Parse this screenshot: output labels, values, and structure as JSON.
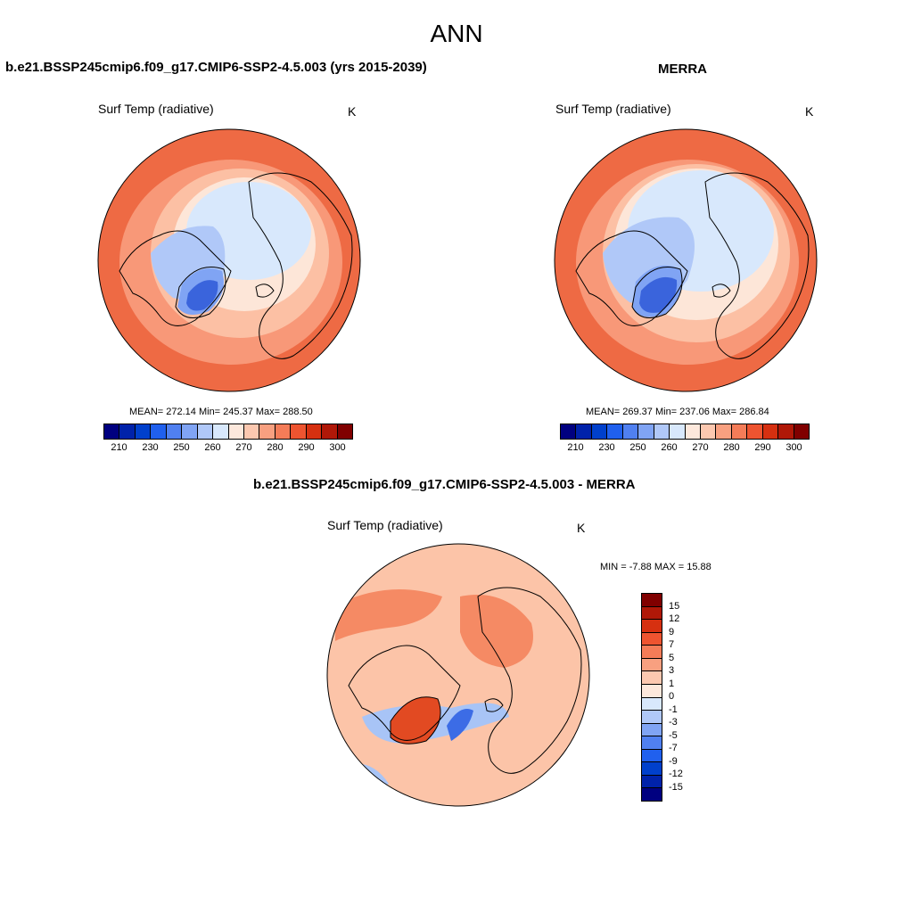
{
  "title": "ANN",
  "panels": [
    {
      "title": "b.e21.BSSP245cmip6.f09_g17.CMIP6-SSP2-4.5.003 (yrs 2015-2039)",
      "variable": "Surf Temp (radiative)",
      "units": "K",
      "stats": "MEAN= 272.14  Min= 245.37  Max= 288.50"
    },
    {
      "title": "MERRA",
      "variable": "Surf Temp (radiative)",
      "units": "K",
      "stats": "MEAN= 269.37  Min= 237.06  Max= 286.84"
    }
  ],
  "diff_panel": {
    "title": "b.e21.BSSP245cmip6.f09_g17.CMIP6-SSP2-4.5.003 - MERRA",
    "variable": "Surf Temp (radiative)",
    "units": "K",
    "stats": "MIN =  -7.88 MAX =  15.88"
  },
  "abs_colorbar": {
    "colors": [
      "#000080",
      "#0022aa",
      "#0040cc",
      "#2060ee",
      "#5080f0",
      "#80a4f4",
      "#b0c8f8",
      "#d8e8fc",
      "#fde8dc",
      "#fcc8b0",
      "#f8a080",
      "#f47c58",
      "#ee5430",
      "#d63010",
      "#b01808",
      "#800000"
    ],
    "labels": [
      "210",
      "230",
      "250",
      "260",
      "270",
      "280",
      "290",
      "300"
    ]
  },
  "diff_colorbar": {
    "colors": [
      "#800000",
      "#b01808",
      "#d63010",
      "#ee5430",
      "#f47c58",
      "#f8a080",
      "#fcc8b0",
      "#fde8dc",
      "#d8e8fc",
      "#b0c8f8",
      "#80a4f4",
      "#5080f0",
      "#2060ee",
      "#0040cc",
      "#0022aa",
      "#000080"
    ],
    "labels": [
      "15",
      "12",
      "9",
      "7",
      "5",
      "3",
      "1",
      "0",
      "-1",
      "-3",
      "-5",
      "-7",
      "-9",
      "-12",
      "-15"
    ]
  },
  "map_colors": {
    "warm_edge": "#ee6a44",
    "warm_mid": "#f89878",
    "warm_light": "#fcc0a4",
    "neutral": "#fde6d8",
    "cool_light": "#d8e8fc",
    "cool_mid": "#b0c8f8",
    "cool": "#80a4f4",
    "cold": "#3a64dc",
    "diff_base": "#fcc4a8",
    "diff_warm": "#f58a64",
    "diff_hot": "#e24a22",
    "diff_cool": "#a8c4f6",
    "diff_cold": "#3c6ce6"
  }
}
